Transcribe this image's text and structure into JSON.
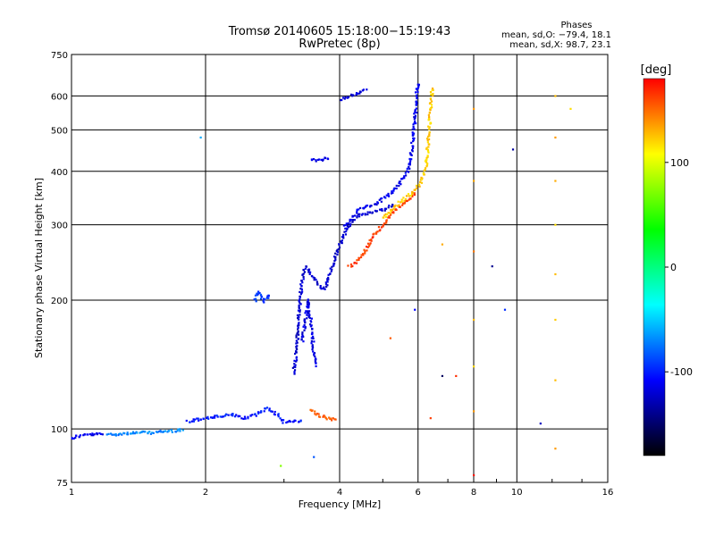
{
  "chart_data": {
    "type": "scatter",
    "title_line1": "Tromsø 20140605 15:18:00−15:19:43",
    "title_line2": "RwPretec (8p)",
    "phase_stats": {
      "heading": "Phases",
      "line_o": "mean, sd,O: −79.4, 18.1",
      "line_x": "mean, sd,X:  98.7, 23.1"
    },
    "xlabel": "Frequency [MHz]",
    "ylabel": "Stationary phase Virtual Height [km]",
    "x_scale": "log",
    "y_scale": "log",
    "xlim": [
      1,
      16
    ],
    "ylim": [
      75,
      750
    ],
    "x_ticks": [
      1,
      2,
      4,
      6,
      8,
      10,
      16
    ],
    "y_ticks": [
      75,
      100,
      200,
      300,
      400,
      500,
      600,
      750
    ],
    "grid": true,
    "colorbar": {
      "label": "[deg]",
      "range": [
        -180,
        180
      ],
      "ticks": [
        100,
        0,
        -100
      ],
      "colors": [
        "#ff0000",
        "#ffff00",
        "#00ff00",
        "#00ffff",
        "#0000ff",
        "#000000"
      ]
    },
    "traces": [
      {
        "phase": -105,
        "points": [
          [
            1.0,
            95
          ],
          [
            1.02,
            96
          ],
          [
            1.05,
            96.5
          ],
          [
            1.08,
            97
          ],
          [
            1.12,
            97
          ],
          [
            1.18,
            97.5
          ]
        ]
      },
      {
        "phase": -70,
        "points": [
          [
            1.2,
            97
          ],
          [
            1.3,
            97.5
          ],
          [
            1.4,
            98
          ],
          [
            1.5,
            98
          ],
          [
            1.6,
            98.5
          ],
          [
            1.7,
            99
          ],
          [
            1.78,
            99.5
          ]
        ]
      },
      {
        "phase": -95,
        "points": [
          [
            1.82,
            104
          ],
          [
            1.9,
            105
          ],
          [
            2.0,
            106
          ],
          [
            2.15,
            107
          ],
          [
            2.3,
            108
          ],
          [
            2.45,
            106
          ],
          [
            2.6,
            108
          ],
          [
            2.75,
            112
          ],
          [
            2.9,
            108
          ],
          [
            3.0,
            104
          ],
          [
            3.2,
            104
          ],
          [
            3.3,
            105
          ]
        ]
      },
      {
        "phase": 150,
        "points": [
          [
            3.45,
            111
          ],
          [
            3.55,
            108
          ],
          [
            3.65,
            107
          ],
          [
            3.75,
            106
          ],
          [
            3.85,
            105.5
          ],
          [
            3.95,
            105
          ]
        ]
      },
      {
        "phase": -90,
        "points": [
          [
            2.58,
            200
          ],
          [
            2.62,
            210
          ],
          [
            2.66,
            205
          ],
          [
            2.7,
            198
          ],
          [
            2.75,
            203
          ],
          [
            2.8,
            207
          ]
        ]
      },
      {
        "phase": -115,
        "points": [
          [
            3.15,
            135
          ],
          [
            3.2,
            150
          ],
          [
            3.22,
            170
          ],
          [
            3.25,
            190
          ],
          [
            3.28,
            215
          ],
          [
            3.35,
            240
          ],
          [
            3.5,
            225
          ],
          [
            3.6,
            215
          ],
          [
            3.7,
            212
          ],
          [
            3.85,
            240
          ],
          [
            4.0,
            270
          ],
          [
            4.2,
            300
          ],
          [
            4.4,
            315
          ],
          [
            4.7,
            320
          ],
          [
            5.0,
            325
          ],
          [
            5.3,
            335
          ]
        ]
      },
      {
        "phase": -110,
        "points": [
          [
            3.3,
            160
          ],
          [
            3.35,
            180
          ],
          [
            3.4,
            200
          ],
          [
            3.45,
            175
          ],
          [
            3.5,
            150
          ],
          [
            3.55,
            140
          ]
        ]
      },
      {
        "phase": -105,
        "points": [
          [
            4.1,
            295
          ],
          [
            4.4,
            325
          ],
          [
            4.8,
            335
          ],
          [
            5.2,
            355
          ],
          [
            5.5,
            380
          ],
          [
            5.7,
            400
          ],
          [
            5.8,
            450
          ],
          [
            5.9,
            520
          ],
          [
            5.95,
            600
          ],
          [
            6.0,
            645
          ]
        ]
      },
      {
        "phase": 160,
        "points": [
          [
            4.2,
            240
          ],
          [
            4.35,
            245
          ],
          [
            4.5,
            255
          ],
          [
            4.65,
            270
          ],
          [
            4.8,
            285
          ],
          [
            5.0,
            300
          ],
          [
            5.2,
            315
          ],
          [
            5.45,
            330
          ],
          [
            5.7,
            345
          ],
          [
            5.95,
            355
          ]
        ]
      },
      {
        "phase": 115,
        "points": [
          [
            5.0,
            310
          ],
          [
            5.3,
            330
          ],
          [
            5.6,
            345
          ],
          [
            5.9,
            360
          ],
          [
            6.1,
            380
          ],
          [
            6.25,
            410
          ],
          [
            6.3,
            450
          ],
          [
            6.35,
            500
          ],
          [
            6.4,
            560
          ],
          [
            6.45,
            630
          ]
        ]
      },
      {
        "phase": -110,
        "points": [
          [
            3.45,
            425
          ],
          [
            3.6,
            425
          ],
          [
            3.8,
            430
          ]
        ]
      },
      {
        "phase": -110,
        "points": [
          [
            4.0,
            590
          ],
          [
            4.2,
            600
          ],
          [
            4.4,
            610
          ],
          [
            4.6,
            620
          ]
        ]
      }
    ],
    "scattered": [
      {
        "f": 8.0,
        "h": 560,
        "phase": 130
      },
      {
        "f": 8.0,
        "h": 380,
        "phase": 125
      },
      {
        "f": 8.0,
        "h": 260,
        "phase": 140
      },
      {
        "f": 8.0,
        "h": 180,
        "phase": 120
      },
      {
        "f": 8.0,
        "h": 140,
        "phase": 110
      },
      {
        "f": 8.0,
        "h": 110,
        "phase": 130
      },
      {
        "f": 8.0,
        "h": 78,
        "phase": 175
      },
      {
        "f": 12.2,
        "h": 600,
        "phase": 120
      },
      {
        "f": 12.2,
        "h": 480,
        "phase": 130
      },
      {
        "f": 12.2,
        "h": 380,
        "phase": 125
      },
      {
        "f": 12.2,
        "h": 300,
        "phase": 110
      },
      {
        "f": 12.2,
        "h": 230,
        "phase": 120
      },
      {
        "f": 12.2,
        "h": 180,
        "phase": 115
      },
      {
        "f": 12.2,
        "h": 130,
        "phase": 120
      },
      {
        "f": 12.2,
        "h": 90,
        "phase": 130
      },
      {
        "f": 8.8,
        "h": 240,
        "phase": -135
      },
      {
        "f": 9.4,
        "h": 190,
        "phase": -90
      },
      {
        "f": 9.8,
        "h": 450,
        "phase": -130
      },
      {
        "f": 11.3,
        "h": 103,
        "phase": -120
      },
      {
        "f": 13.2,
        "h": 560,
        "phase": 110
      },
      {
        "f": 6.8,
        "h": 133,
        "phase": -150
      },
      {
        "f": 7.3,
        "h": 133,
        "phase": 165
      },
      {
        "f": 6.8,
        "h": 270,
        "phase": 125
      },
      {
        "f": 5.9,
        "h": 190,
        "phase": -100
      },
      {
        "f": 6.4,
        "h": 106,
        "phase": 160
      },
      {
        "f": 5.2,
        "h": 163,
        "phase": 150
      },
      {
        "f": 2.95,
        "h": 82,
        "phase": 70
      },
      {
        "f": 3.5,
        "h": 86,
        "phase": -80
      },
      {
        "f": 1.95,
        "h": 480,
        "phase": -60
      }
    ]
  }
}
